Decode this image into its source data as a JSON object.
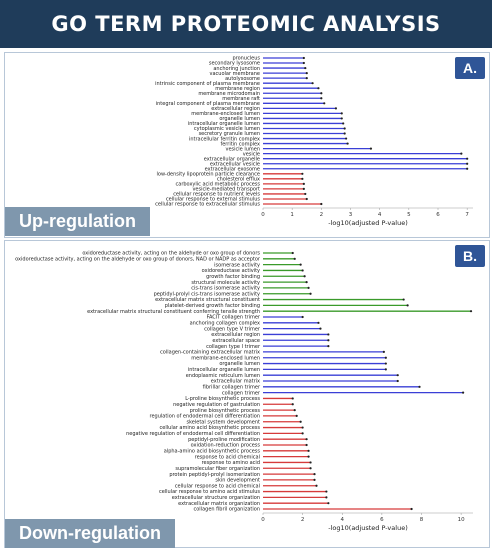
{
  "header": {
    "title": "GO TERM PROTEOMIC ANALYSIS"
  },
  "panel_a": {
    "badge": "A.",
    "label": "Up-regulation"
  },
  "panel_b": {
    "badge": "B.",
    "label": "Down-regulation"
  },
  "colors": {
    "header": "#1f3c5a",
    "cc": "#3a3fd6",
    "bp": "#d63a3a",
    "mf": "#3a9a2a",
    "badge": "#2f5597",
    "label_bg": "#7f97ad"
  },
  "chart_data": [
    {
      "type": "bar",
      "orientation": "horizontal",
      "style": "lollipop",
      "xlabel": "-log10(adjusted P-value)",
      "xlim": [
        0,
        7.2
      ],
      "xticks": [
        0,
        1,
        2,
        3,
        4,
        5,
        6,
        7
      ],
      "categories": [
        "pronucleus",
        "secondary lysosome",
        "anchoring junction",
        "vacuolar membrane",
        "autolysosome",
        "intrinsic component of plasma membrane",
        "membrane region",
        "membrane microdomain",
        "membrane raft",
        "integral component of plasma membrane",
        "extracellular region",
        "membrane-enclosed lumen",
        "organelle lumen",
        "intracellular organelle lumen",
        "cytoplasmic vesicle lumen",
        "secretory granule lumen",
        "intracellular ferritin complex",
        "ferritin complex",
        "vesicle lumen",
        "vesicle",
        "extracellular organelle",
        "extracellular vesicle",
        "extracellular exosome",
        "low-density lipoprotein particle clearance",
        "cholesterol efflux",
        "carboxylic acid metabolic process",
        "vesicle-mediated transport",
        "cellular response to nutrient levels",
        "cellular response to external stimulus",
        "cellular response to extracellular stimulus"
      ],
      "values": [
        1.4,
        1.4,
        1.45,
        1.5,
        1.5,
        1.7,
        1.9,
        2.0,
        2.0,
        2.1,
        2.5,
        2.7,
        2.7,
        2.75,
        2.8,
        2.8,
        2.85,
        2.9,
        3.7,
        6.8,
        7.0,
        7.0,
        7.0,
        1.35,
        1.35,
        1.4,
        1.4,
        1.45,
        1.5,
        2.0
      ],
      "groups": [
        "cc",
        "cc",
        "cc",
        "cc",
        "cc",
        "cc",
        "cc",
        "cc",
        "cc",
        "cc",
        "cc",
        "cc",
        "cc",
        "cc",
        "cc",
        "cc",
        "cc",
        "cc",
        "cc",
        "cc",
        "cc",
        "cc",
        "cc",
        "bp",
        "bp",
        "bp",
        "bp",
        "bp",
        "bp",
        "bp"
      ]
    },
    {
      "type": "bar",
      "orientation": "horizontal",
      "style": "lollipop",
      "xlabel": "-log10(adjusted P-value)",
      "xlim": [
        0,
        10.6
      ],
      "xticks": [
        0,
        2,
        4,
        6,
        8,
        10
      ],
      "categories": [
        "oxidoreductase activity, acting on the aldehyde or oxo group of donors",
        "oxidoreductase activity, acting on the aldehyde or oxo group of donors, NAD or NADP as acceptor",
        "isomerase activity",
        "oxidoreductase activity",
        "growth factor binding",
        "structural molecule activity",
        "cis-trans isomerase activity",
        "peptidyl-prolyl cis-trans isomerase activity",
        "extracellular matrix structural constituent",
        "platelet-derived growth factor binding",
        "extracellular matrix structural constituent conferring tensile strength",
        "FACIT collagen trimer",
        "anchoring collagen complex",
        "collagen type V trimer",
        "extracellular region",
        "extracellular space",
        "collagen type I trimer",
        "collagen-containing extracellular matrix",
        "membrane-enclosed lumen",
        "organelle lumen",
        "intracellular organelle lumen",
        "endoplasmic reticulum lumen",
        "extracellular matrix",
        "fibrillar collagen trimer",
        "collagen trimer",
        "L-proline biosynthetic process",
        "negative regulation of gastrulation",
        "proline biosynthetic process",
        "regulation of endodermal cell differentiation",
        "skeletal system development",
        "cellular amino acid biosynthetic process",
        "negative regulation of endodermal cell differentiation",
        "peptidyl-proline modification",
        "oxidation-reduction process",
        "alpha-amino acid biosynthetic process",
        "response to acid chemical",
        "response to amino acid",
        "supramolecular fiber organization",
        "protein peptidyl-prolyl isomerization",
        "skin development",
        "cellular response to acid chemical",
        "cellular response to amino acid stimulus",
        "extracellular structure organization",
        "extracellular matrix organization",
        "collagen fibril organization"
      ],
      "values": [
        1.5,
        1.6,
        1.9,
        2.0,
        2.1,
        2.2,
        2.3,
        2.4,
        7.1,
        7.3,
        10.5,
        2.0,
        2.8,
        2.9,
        3.3,
        3.3,
        3.3,
        6.1,
        6.2,
        6.2,
        6.2,
        6.8,
        6.8,
        7.9,
        10.1,
        1.5,
        1.5,
        1.6,
        1.7,
        1.9,
        2.0,
        2.0,
        2.2,
        2.2,
        2.3,
        2.3,
        2.4,
        2.4,
        2.6,
        2.6,
        2.7,
        3.2,
        3.2,
        3.3,
        7.5
      ],
      "groups": [
        "mf",
        "mf",
        "mf",
        "mf",
        "mf",
        "mf",
        "mf",
        "mf",
        "mf",
        "mf",
        "mf",
        "cc",
        "cc",
        "cc",
        "cc",
        "cc",
        "cc",
        "cc",
        "cc",
        "cc",
        "cc",
        "cc",
        "cc",
        "cc",
        "cc",
        "bp",
        "bp",
        "bp",
        "bp",
        "bp",
        "bp",
        "bp",
        "bp",
        "bp",
        "bp",
        "bp",
        "bp",
        "bp",
        "bp",
        "bp",
        "bp",
        "bp",
        "bp",
        "bp",
        "bp"
      ]
    }
  ]
}
